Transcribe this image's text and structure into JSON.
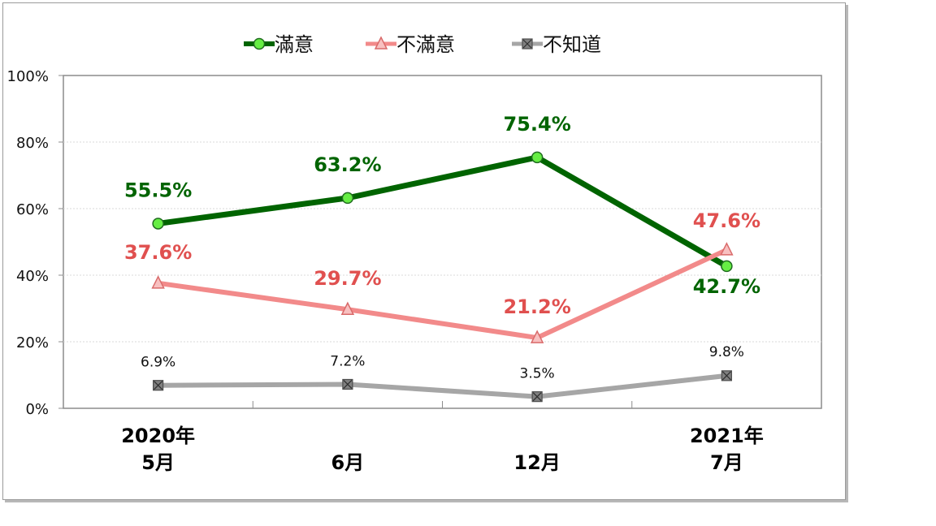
{
  "chart_data": {
    "type": "line",
    "categories": [
      {
        "line1": "2020年",
        "line2": "5月"
      },
      {
        "line1": "",
        "line2": "6月"
      },
      {
        "line1": "",
        "line2": "12月"
      },
      {
        "line1": "2021年",
        "line2": "7月"
      }
    ],
    "y_ticks": [
      "0%",
      "20%",
      "40%",
      "60%",
      "80%",
      "100%"
    ],
    "ylim": [
      0,
      100
    ],
    "grid": true,
    "legend_position": "top-center",
    "series": [
      {
        "name": "滿意",
        "values": [
          55.5,
          63.2,
          75.4,
          42.7
        ],
        "labels": [
          "55.5%",
          "63.2%",
          "75.4%",
          "42.7%"
        ],
        "color": "#006400",
        "marker": "circle",
        "marker_color": "#66ee44"
      },
      {
        "name": "不滿意",
        "values": [
          37.6,
          29.7,
          21.2,
          47.6
        ],
        "labels": [
          "37.6%",
          "29.7%",
          "21.2%",
          "47.6%"
        ],
        "color": "#f28a8a",
        "marker": "triangle",
        "marker_color": "#f8c0c0",
        "label_color": "#e0504f"
      },
      {
        "name": "不知道",
        "values": [
          6.9,
          7.2,
          3.5,
          9.8
        ],
        "labels": [
          "6.9%",
          "7.2%",
          "3.5%",
          "9.8%"
        ],
        "color": "#a6a6a6",
        "marker": "x-square",
        "marker_color": "#808080"
      }
    ]
  }
}
